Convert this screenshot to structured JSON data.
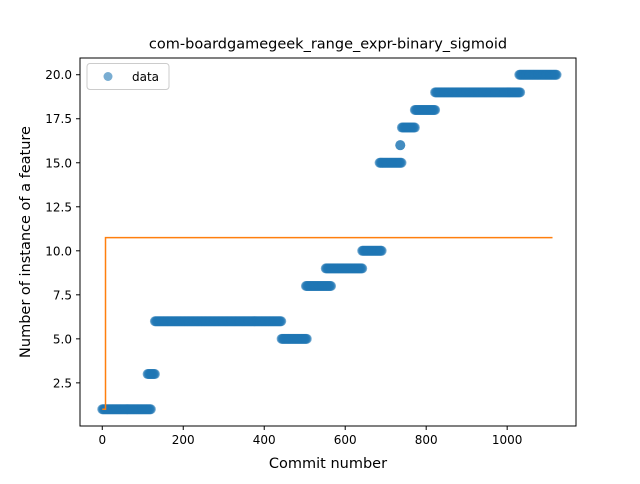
{
  "chart_data": {
    "type": "scatter",
    "title": "com-boardgamegeek_range_expr-binary_sigmoid",
    "xlabel": "Commit number",
    "ylabel": "Number of instance of a feature",
    "xlim": [
      -55,
      1170
    ],
    "ylim": [
      0.05,
      20.95
    ],
    "xticks": [
      0,
      200,
      400,
      600,
      800,
      1000
    ],
    "xtick_labels": [
      "0",
      "200",
      "400",
      "600",
      "800",
      "1000"
    ],
    "yticks": [
      2.5,
      5.0,
      7.5,
      10.0,
      12.5,
      15.0,
      17.5,
      20.0
    ],
    "ytick_labels": [
      "2.5",
      "5.0",
      "7.5",
      "10.0",
      "12.5",
      "15.0",
      "17.5",
      "20.0"
    ],
    "grid": false,
    "legend": {
      "position": "top-left",
      "entries": [
        "data"
      ]
    },
    "colors": {
      "data": "#1f77b4",
      "fit": "#ff7f0e"
    },
    "series": [
      {
        "name": "data",
        "kind": "points",
        "segments": [
          {
            "x_start": 0,
            "x_end": 120,
            "y": 1
          },
          {
            "x_start": 112,
            "x_end": 130,
            "y": 3
          },
          {
            "x_start": 130,
            "x_end": 443,
            "y": 6
          },
          {
            "x_start": 443,
            "x_end": 505,
            "y": 5
          },
          {
            "x_start": 503,
            "x_end": 565,
            "y": 8
          },
          {
            "x_start": 552,
            "x_end": 643,
            "y": 9
          },
          {
            "x_start": 642,
            "x_end": 690,
            "y": 10
          },
          {
            "x_start": 685,
            "x_end": 740,
            "y": 15
          },
          {
            "x_start": 736,
            "x_end": 736,
            "y": 16
          },
          {
            "x_start": 740,
            "x_end": 772,
            "y": 17
          },
          {
            "x_start": 772,
            "x_end": 822,
            "y": 18
          },
          {
            "x_start": 822,
            "x_end": 1033,
            "y": 19
          },
          {
            "x_start": 1030,
            "x_end": 1122,
            "y": 20
          }
        ]
      },
      {
        "kind": "line",
        "x": [
          0,
          8,
          8,
          1112
        ],
        "y": [
          1.0,
          1.0,
          10.75,
          10.75
        ]
      }
    ]
  }
}
